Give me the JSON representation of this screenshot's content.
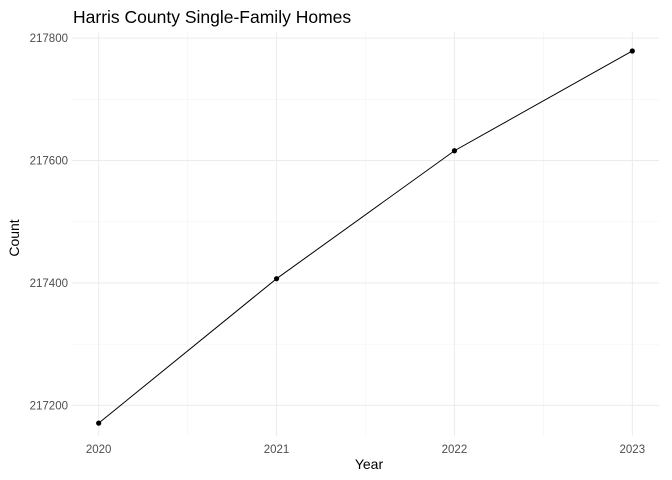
{
  "chart_data": {
    "type": "line",
    "title": "Harris County Single-Family Homes",
    "xlabel": "Year",
    "ylabel": "Count",
    "x": [
      2020,
      2021,
      2022,
      2023
    ],
    "series": [
      {
        "values": [
          217171,
          217407,
          217616,
          217779
        ]
      }
    ],
    "xlim": [
      2019.85,
      2023.15
    ],
    "ylim": [
      217150,
      217810
    ],
    "x_ticks": [
      "2020",
      "2021",
      "2022",
      "2023"
    ],
    "y_ticks": [
      217200,
      217400,
      217600,
      217800
    ],
    "y_tick_labels": [
      "217200",
      "217400",
      "217600",
      "217800"
    ],
    "grid": true,
    "markers": true,
    "line_color": "#000000",
    "point_color": "#000000",
    "grid_color": "#ebebeb"
  }
}
